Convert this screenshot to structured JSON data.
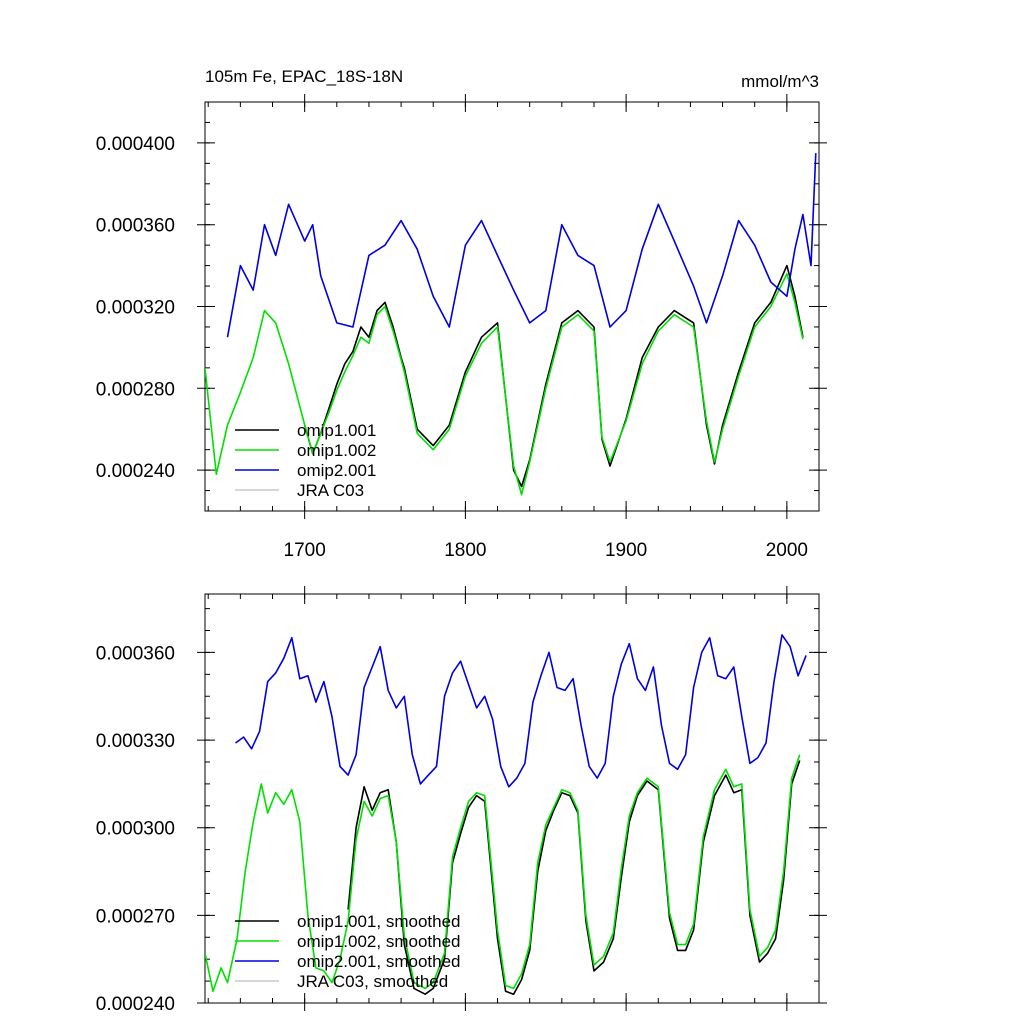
{
  "chart_data": [
    {
      "type": "line",
      "title": "105m Fe, EPAC_18S-18N",
      "units_label": "mmol/m^3",
      "xlabel": "",
      "ylabel": "",
      "xlim": [
        1638,
        2020
      ],
      "ylim": [
        0.00022,
        0.00042
      ],
      "x_ticks": [
        1700,
        1800,
        1900,
        2000
      ],
      "x_tick_labels": [
        "1700",
        "1800",
        "1900",
        "2000"
      ],
      "y_ticks": [
        0.00024,
        0.00028,
        0.00032,
        0.00036,
        0.0004
      ],
      "y_tick_labels": [
        "0.000240",
        "0.000280",
        "0.000320",
        "0.000360",
        "0.000400"
      ],
      "grid": false,
      "legend_position": "bottom-left",
      "series": [
        {
          "name": "omip1.001",
          "color": "#000000",
          "x": [
            1700,
            1705,
            1710,
            1715,
            1720,
            1725,
            1730,
            1735,
            1740,
            1745,
            1750,
            1755,
            1760,
            1762,
            1770,
            1780,
            1790,
            1800,
            1810,
            1820,
            1830,
            1835,
            1840,
            1850,
            1860,
            1870,
            1880,
            1885,
            1890,
            1900,
            1910,
            1920,
            1930,
            1942,
            1950,
            1955,
            1960,
            1970,
            1980,
            1990,
            2000,
            2005,
            2010
          ],
          "values": [
            0.000262,
            0.000248,
            0.000258,
            0.00027,
            0.000282,
            0.000292,
            0.000298,
            0.00031,
            0.000305,
            0.000318,
            0.000322,
            0.00031,
            0.000295,
            0.00029,
            0.00026,
            0.000252,
            0.000262,
            0.000288,
            0.000305,
            0.000312,
            0.00024,
            0.000232,
            0.000245,
            0.000282,
            0.000312,
            0.000318,
            0.00031,
            0.000255,
            0.000242,
            0.000265,
            0.000295,
            0.00031,
            0.000318,
            0.000312,
            0.000262,
            0.000243,
            0.000262,
            0.000288,
            0.000312,
            0.000322,
            0.00034,
            0.000325,
            0.000305
          ]
        },
        {
          "name": "omip1.002",
          "color": "#00e000",
          "x": [
            1638,
            1645,
            1652,
            1660,
            1668,
            1675,
            1682,
            1690,
            1700,
            1705,
            1710,
            1715,
            1720,
            1725,
            1730,
            1735,
            1740,
            1745,
            1750,
            1755,
            1760,
            1762,
            1770,
            1780,
            1790,
            1800,
            1810,
            1820,
            1830,
            1835,
            1840,
            1850,
            1860,
            1870,
            1880,
            1885,
            1890,
            1900,
            1910,
            1920,
            1930,
            1942,
            1950,
            1955,
            1960,
            1970,
            1980,
            1990,
            2000,
            2005,
            2010
          ],
          "values": [
            0.00029,
            0.000238,
            0.000262,
            0.000278,
            0.000295,
            0.000318,
            0.000312,
            0.000292,
            0.000262,
            0.000248,
            0.000258,
            0.000268,
            0.000279,
            0.000288,
            0.000296,
            0.000305,
            0.000302,
            0.000316,
            0.00032,
            0.000308,
            0.000294,
            0.000288,
            0.000258,
            0.00025,
            0.00026,
            0.000286,
            0.000302,
            0.00031,
            0.000242,
            0.000228,
            0.000244,
            0.00028,
            0.00031,
            0.000316,
            0.000308,
            0.000256,
            0.000244,
            0.000264,
            0.000292,
            0.000308,
            0.000316,
            0.00031,
            0.000264,
            0.000244,
            0.00026,
            0.000286,
            0.00031,
            0.00032,
            0.000336,
            0.000322,
            0.000304
          ]
        },
        {
          "name": "omip2.001",
          "color": "#0000e0",
          "x": [
            1652,
            1660,
            1668,
            1675,
            1682,
            1690,
            1700,
            1705,
            1710,
            1720,
            1730,
            1740,
            1750,
            1760,
            1770,
            1780,
            1790,
            1800,
            1810,
            1820,
            1830,
            1840,
            1850,
            1860,
            1870,
            1880,
            1890,
            1900,
            1910,
            1920,
            1930,
            1942,
            1950,
            1960,
            1970,
            1980,
            1990,
            2000,
            2005,
            2010,
            2015,
            2018
          ],
          "values": [
            0.000305,
            0.00034,
            0.000328,
            0.00036,
            0.000345,
            0.00037,
            0.000352,
            0.00036,
            0.000335,
            0.000312,
            0.00031,
            0.000345,
            0.00035,
            0.000362,
            0.000348,
            0.000325,
            0.00031,
            0.00035,
            0.000362,
            0.000345,
            0.000328,
            0.000312,
            0.000318,
            0.00036,
            0.000345,
            0.00034,
            0.00031,
            0.000318,
            0.000348,
            0.00037,
            0.000352,
            0.00033,
            0.000312,
            0.000335,
            0.000362,
            0.00035,
            0.000332,
            0.000325,
            0.000348,
            0.000365,
            0.00034,
            0.000395
          ]
        },
        {
          "name": "JRA C03",
          "color": "#c8c8c8",
          "x": [],
          "values": []
        }
      ]
    },
    {
      "type": "line",
      "title": "",
      "xlabel": "",
      "ylabel": "",
      "xlim": [
        1638,
        2020
      ],
      "ylim": [
        0.00024,
        0.00038
      ],
      "x_ticks": [
        1700,
        1800,
        1900,
        2000
      ],
      "y_ticks": [
        0.00024,
        0.00027,
        0.0003,
        0.00033,
        0.00036
      ],
      "y_tick_labels": [
        "0.000240",
        "0.000270",
        "0.000300",
        "0.000330",
        "0.000360"
      ],
      "grid": false,
      "legend_position": "bottom-left",
      "series": [
        {
          "name": "omip1.001, smoothed",
          "color": "#000000",
          "x": [
            1727,
            1732,
            1737,
            1742,
            1747,
            1752,
            1757,
            1762,
            1768,
            1775,
            1780,
            1787,
            1792,
            1797,
            1802,
            1807,
            1812,
            1820,
            1825,
            1830,
            1835,
            1840,
            1845,
            1850,
            1855,
            1860,
            1865,
            1870,
            1875,
            1880,
            1886,
            1892,
            1897,
            1902,
            1907,
            1913,
            1920,
            1927,
            1932,
            1937,
            1942,
            1948,
            1955,
            1962,
            1967,
            1972,
            1977,
            1983,
            1988,
            1993,
            1998,
            2003,
            2008
          ],
          "values": [
            0.000272,
            0.0003,
            0.000314,
            0.000306,
            0.000312,
            0.000313,
            0.000295,
            0.00026,
            0.000245,
            0.000243,
            0.000245,
            0.000255,
            0.000288,
            0.000298,
            0.000307,
            0.000311,
            0.000309,
            0.000262,
            0.000244,
            0.000243,
            0.000248,
            0.000258,
            0.000285,
            0.000299,
            0.000306,
            0.000312,
            0.000311,
            0.000305,
            0.000268,
            0.000251,
            0.000254,
            0.000262,
            0.000283,
            0.000302,
            0.000311,
            0.000316,
            0.000313,
            0.000269,
            0.000258,
            0.000258,
            0.000265,
            0.000295,
            0.000311,
            0.000318,
            0.000312,
            0.000313,
            0.00027,
            0.000254,
            0.000257,
            0.000262,
            0.000282,
            0.000315,
            0.000323
          ]
        },
        {
          "name": "omip1.002, smoothed",
          "color": "#00e000",
          "x": [
            1638,
            1643,
            1648,
            1652,
            1658,
            1663,
            1668,
            1673,
            1677,
            1682,
            1687,
            1692,
            1697,
            1702,
            1707,
            1712,
            1717,
            1722,
            1727,
            1732,
            1737,
            1742,
            1747,
            1752,
            1757,
            1762,
            1768,
            1775,
            1780,
            1787,
            1792,
            1797,
            1802,
            1807,
            1812,
            1820,
            1825,
            1830,
            1835,
            1840,
            1845,
            1850,
            1855,
            1860,
            1865,
            1870,
            1875,
            1880,
            1886,
            1892,
            1897,
            1902,
            1907,
            1913,
            1920,
            1927,
            1932,
            1937,
            1942,
            1948,
            1955,
            1962,
            1967,
            1972,
            1977,
            1983,
            1988,
            1993,
            1998,
            2003,
            2008
          ],
          "values": [
            0.000257,
            0.000244,
            0.000252,
            0.000247,
            0.000262,
            0.000285,
            0.000302,
            0.000315,
            0.000305,
            0.000312,
            0.000308,
            0.000313,
            0.000302,
            0.00027,
            0.000252,
            0.000251,
            0.000247,
            0.000255,
            0.000268,
            0.000296,
            0.000309,
            0.000304,
            0.00031,
            0.000311,
            0.000295,
            0.000263,
            0.000247,
            0.000245,
            0.000247,
            0.000257,
            0.00029,
            0.0003,
            0.000309,
            0.000312,
            0.000311,
            0.000265,
            0.000246,
            0.000245,
            0.00025,
            0.00026,
            0.000288,
            0.000301,
            0.000307,
            0.000313,
            0.000312,
            0.000306,
            0.00027,
            0.000253,
            0.000256,
            0.000264,
            0.000286,
            0.000304,
            0.000312,
            0.000317,
            0.000314,
            0.000271,
            0.00026,
            0.00026,
            0.000267,
            0.000297,
            0.000313,
            0.00032,
            0.000314,
            0.000315,
            0.000272,
            0.000256,
            0.000259,
            0.000265,
            0.000285,
            0.000317,
            0.000325
          ]
        },
        {
          "name": "omip2.001, smoothed",
          "color": "#0000e0",
          "x": [
            1657,
            1662,
            1667,
            1672,
            1677,
            1682,
            1687,
            1692,
            1697,
            1702,
            1707,
            1712,
            1717,
            1722,
            1727,
            1732,
            1737,
            1742,
            1747,
            1752,
            1757,
            1762,
            1767,
            1772,
            1777,
            1782,
            1787,
            1792,
            1797,
            1802,
            1807,
            1812,
            1817,
            1822,
            1827,
            1832,
            1837,
            1842,
            1847,
            1852,
            1857,
            1862,
            1867,
            1872,
            1877,
            1882,
            1887,
            1892,
            1897,
            1902,
            1907,
            1912,
            1917,
            1922,
            1927,
            1932,
            1937,
            1942,
            1947,
            1952,
            1957,
            1962,
            1967,
            1972,
            1977,
            1982,
            1987,
            1992,
            1997,
            2002,
            2007,
            2012
          ],
          "values": [
            0.000329,
            0.000331,
            0.000327,
            0.000333,
            0.00035,
            0.000353,
            0.000358,
            0.000365,
            0.000351,
            0.000352,
            0.000343,
            0.00035,
            0.000338,
            0.000321,
            0.000318,
            0.000325,
            0.000348,
            0.000355,
            0.000362,
            0.000347,
            0.000341,
            0.000345,
            0.000325,
            0.000315,
            0.000318,
            0.000321,
            0.000345,
            0.000353,
            0.000357,
            0.000349,
            0.000341,
            0.000345,
            0.000337,
            0.000321,
            0.000314,
            0.000317,
            0.000322,
            0.000343,
            0.000352,
            0.00036,
            0.000348,
            0.000347,
            0.000351,
            0.000335,
            0.000321,
            0.000317,
            0.000322,
            0.000345,
            0.000356,
            0.000363,
            0.000351,
            0.000347,
            0.000355,
            0.000335,
            0.000322,
            0.00032,
            0.000325,
            0.000348,
            0.00036,
            0.000365,
            0.000352,
            0.000351,
            0.000355,
            0.000338,
            0.000322,
            0.000324,
            0.000329,
            0.00035,
            0.000366,
            0.000362,
            0.000352,
            0.000359
          ]
        },
        {
          "name": "JRA C03, smoothed",
          "color": "#c8c8c8",
          "x": [],
          "values": []
        }
      ]
    }
  ]
}
